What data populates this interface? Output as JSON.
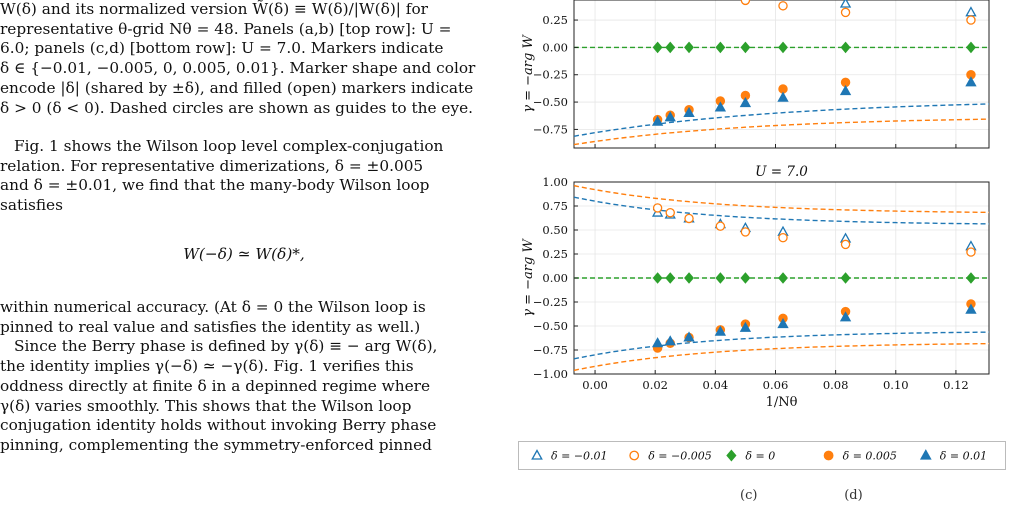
{
  "text": {
    "caption_lines": [
      "W(δ) and its normalized version W̃(δ) ≡ W(δ)/|W(δ)| for",
      "representative θ-grid Nθ = 48. Panels (a,b) [top row]: U =",
      "6.0; panels (c,d) [bottom row]: U = 7.0. Markers indicate",
      "δ ∈ {−0.01, −0.005, 0, 0.005, 0.01}. Marker shape and color",
      "encode |δ| (shared by ±δ), and filled (open) markers indicate",
      "δ > 0 (δ < 0). Dashed circles are shown as guides to the eye."
    ],
    "para1_lines": [
      "Fig. 1 shows the Wilson loop level complex-conjugation",
      "relation. For representative dimerizations, δ = ±0.005",
      "and δ = ±0.01, we find that the many-body Wilson loop",
      "satisfies"
    ],
    "equation": "W(−δ) ≃ W(δ)*,",
    "para2_lines": [
      "within numerical accuracy. (At δ = 0 the Wilson loop is",
      "pinned to real value and satisfies the identity as well.)",
      "Since the Berry phase is defined by γ(δ) ≡ − arg W(δ),",
      "the identity implies γ(−δ) ≃ −γ(δ). Fig. 1 verifies this",
      "oddness directly at finite δ in a depinned regime where",
      "γ(δ) varies smoothly. This shows that the Wilson loop",
      "conjugation identity holds without invoking Berry phase",
      "pinning, complementing the symmetry-enforced pinned"
    ]
  },
  "chart_data": [
    {
      "type": "scatter",
      "title": "",
      "xlabel": "",
      "ylabel": "γ = −arg W",
      "xlim": [
        -0.007,
        0.131
      ],
      "ylim": [
        -0.92,
        0.47
      ],
      "yticks": [
        "0.25",
        "0.00",
        "−0.25",
        "−0.50",
        "−0.75"
      ],
      "ytick_values": [
        0.25,
        0.0,
        -0.25,
        -0.5,
        -0.75
      ],
      "x": [
        0.0208,
        0.025,
        0.03125,
        0.04167,
        0.05,
        0.0625,
        0.0833,
        0.125
      ],
      "series": [
        {
          "name": "δ = −0.01",
          "marker": "triangle-open",
          "color": "#1f77b4",
          "values": [
            null,
            null,
            null,
            null,
            null,
            null,
            0.4,
            0.32
          ]
        },
        {
          "name": "δ = −0.005",
          "marker": "circle-open",
          "color": "#ff7f0e",
          "values": [
            null,
            null,
            null,
            null,
            0.43,
            0.38,
            0.32,
            0.25
          ]
        },
        {
          "name": "δ = 0",
          "marker": "diamond-filled",
          "color": "#2ca02c",
          "values": [
            0,
            0,
            0,
            0,
            0,
            0,
            0,
            0
          ]
        },
        {
          "name": "δ = 0.005",
          "marker": "circle-filled",
          "color": "#ff7f0e",
          "values": [
            -0.66,
            -0.62,
            -0.57,
            -0.49,
            -0.44,
            -0.38,
            -0.32,
            -0.25
          ]
        },
        {
          "name": "δ = 0.01",
          "marker": "triangle-filled",
          "color": "#1f77b4",
          "values": [
            -0.68,
            -0.64,
            -0.6,
            -0.55,
            -0.51,
            -0.46,
            -0.4,
            -0.32
          ]
        }
      ],
      "guides": [
        {
          "color": "#1f77b4",
          "kind": "dashed",
          "sign": 1,
          "a": 0.78,
          "b": 0.47,
          "c": 0.07
        },
        {
          "color": "#1f77b4",
          "kind": "dashed",
          "sign": -1,
          "a": 0.78,
          "b": 0.47,
          "c": 0.07
        },
        {
          "color": "#ff7f0e",
          "kind": "dashed",
          "sign": 1,
          "a": 0.86,
          "b": 0.63,
          "c": 0.06
        },
        {
          "color": "#ff7f0e",
          "kind": "dashed",
          "sign": -1,
          "a": 0.86,
          "b": 0.63,
          "c": 0.06
        },
        {
          "color": "#2ca02c",
          "kind": "flat"
        }
      ]
    },
    {
      "type": "scatter",
      "title": "U = 7.0",
      "xlabel": "1/Nθ",
      "ylabel": "γ = −arg W",
      "xlim": [
        -0.007,
        0.131
      ],
      "ylim": [
        -1.0,
        1.0
      ],
      "xticks": [
        "0.00",
        "0.02",
        "0.04",
        "0.06",
        "0.08",
        "0.10",
        "0.12"
      ],
      "xtick_values": [
        0.0,
        0.02,
        0.04,
        0.06,
        0.08,
        0.1,
        0.12
      ],
      "yticks": [
        "1.00",
        "0.75",
        "0.50",
        "0.25",
        "0.00",
        "−0.25",
        "−0.50",
        "−0.75",
        "−1.00"
      ],
      "ytick_values": [
        1.0,
        0.75,
        0.5,
        0.25,
        0.0,
        -0.25,
        -0.5,
        -0.75,
        -1.0
      ],
      "x": [
        0.0208,
        0.025,
        0.03125,
        0.04167,
        0.05,
        0.0625,
        0.0833,
        0.125
      ],
      "series": [
        {
          "name": "δ = −0.01",
          "marker": "triangle-open",
          "color": "#1f77b4",
          "values": [
            0.68,
            0.66,
            0.62,
            0.56,
            0.52,
            0.48,
            0.41,
            0.33
          ]
        },
        {
          "name": "δ = −0.005",
          "marker": "circle-open",
          "color": "#ff7f0e",
          "values": [
            0.73,
            0.68,
            0.62,
            0.54,
            0.48,
            0.42,
            0.35,
            0.27
          ]
        },
        {
          "name": "δ = 0",
          "marker": "diamond-filled",
          "color": "#2ca02c",
          "values": [
            0,
            0,
            0,
            0,
            0,
            0,
            0,
            0
          ]
        },
        {
          "name": "δ = 0.005",
          "marker": "circle-filled",
          "color": "#ff7f0e",
          "values": [
            -0.73,
            -0.68,
            -0.62,
            -0.54,
            -0.48,
            -0.42,
            -0.35,
            -0.27
          ]
        },
        {
          "name": "δ = 0.01",
          "marker": "triangle-filled",
          "color": "#1f77b4",
          "values": [
            -0.68,
            -0.66,
            -0.62,
            -0.56,
            -0.52,
            -0.48,
            -0.41,
            -0.33
          ]
        }
      ],
      "guides": [
        {
          "color": "#1f77b4",
          "kind": "dashed",
          "sign": 1,
          "a": 0.8,
          "b": 0.55,
          "c": 0.045
        },
        {
          "color": "#1f77b4",
          "kind": "dashed",
          "sign": -1,
          "a": 0.8,
          "b": 0.55,
          "c": 0.045
        },
        {
          "color": "#ff7f0e",
          "kind": "dashed",
          "sign": 1,
          "a": 0.92,
          "b": 0.67,
          "c": 0.045
        },
        {
          "color": "#ff7f0e",
          "kind": "dashed",
          "sign": -1,
          "a": 0.92,
          "b": 0.67,
          "c": 0.045
        },
        {
          "color": "#2ca02c",
          "kind": "flat"
        }
      ]
    }
  ],
  "legend": [
    {
      "label": "δ = −0.01",
      "marker": "triangle-open",
      "color": "#1f77b4"
    },
    {
      "label": "δ = −0.005",
      "marker": "circle-open",
      "color": "#ff7f0e"
    },
    {
      "label": "δ = 0",
      "marker": "diamond-filled",
      "color": "#2ca02c"
    },
    {
      "label": "δ = 0.005",
      "marker": "circle-filled",
      "color": "#ff7f0e"
    },
    {
      "label": "δ = 0.01",
      "marker": "triangle-filled",
      "color": "#1f77b4"
    }
  ],
  "bottom_caption": "(c)                     (d)"
}
